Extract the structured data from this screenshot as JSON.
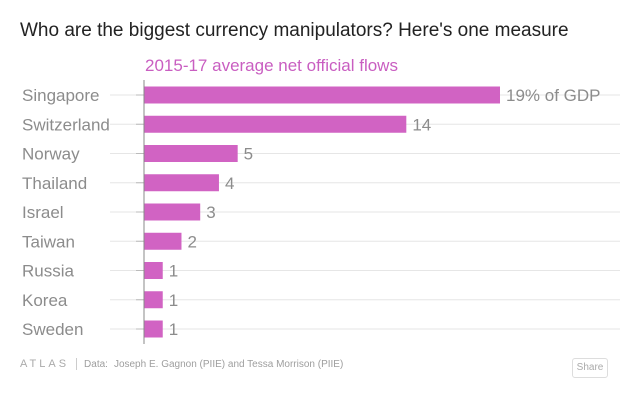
{
  "title": "Who are the biggest currency manipulators? Here's one measure",
  "subtitle": "2015-17 average net official flows",
  "footer": {
    "logo": "ATLAS",
    "source_label": "Data:",
    "source_text": "Joseph E. Gagnon (PIIE) and Tessa Morrison (PIIE)",
    "share_label": "Share"
  },
  "colors": {
    "bar": "#d163c3",
    "label": "#8c8c8c",
    "grid": "#e6e6e6",
    "axis": "#888888"
  },
  "chart_data": {
    "type": "bar",
    "orientation": "horizontal",
    "title": "Who are the biggest currency manipulators? Here's one measure",
    "subtitle": "2015-17 average net official flows",
    "categories": [
      "Singapore",
      "Switzerland",
      "Norway",
      "Thailand",
      "Israel",
      "Taiwan",
      "Russia",
      "Korea",
      "Sweden"
    ],
    "values": [
      19,
      14,
      5,
      4,
      3,
      2,
      1,
      1,
      1
    ],
    "value_labels": [
      "19% of GDP",
      "14",
      "5",
      "4",
      "3",
      "2",
      "1",
      "1",
      "1"
    ],
    "unit": "% of GDP",
    "xlim": [
      0,
      19
    ],
    "grid": true
  }
}
